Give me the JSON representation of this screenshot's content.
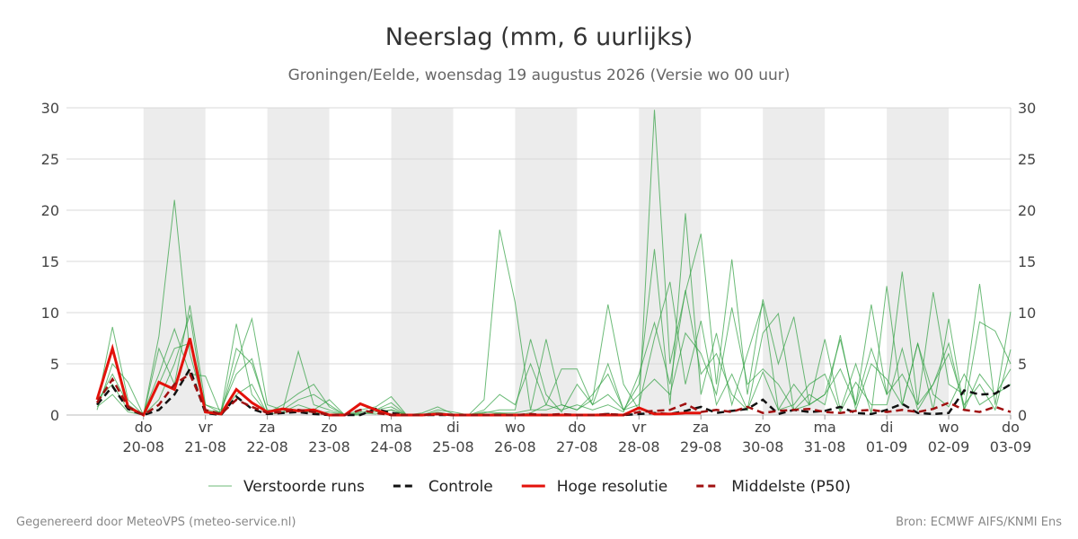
{
  "chart_data": {
    "type": "line",
    "title": "Neerslag (mm, 6 uurlijks)",
    "subtitle": "Groningen/Eelde, woensdag 19 augustus 2026 (Versie wo 00 uur)",
    "categories": [
      null,
      null,
      null,
      "do\n20-08",
      null,
      null,
      null,
      "vr\n21-08",
      null,
      null,
      null,
      "za\n22-08",
      null,
      null,
      null,
      "zo\n23-08",
      null,
      null,
      null,
      "ma\n24-08",
      null,
      null,
      null,
      "di\n25-08",
      null,
      null,
      null,
      "wo\n26-08",
      null,
      null,
      null,
      "do\n27-08",
      null,
      null,
      null,
      "vr\n28-08",
      null,
      null,
      null,
      "za\n29-08",
      null,
      null,
      null,
      "zo\n30-08",
      null,
      null,
      null,
      "ma\n31-08",
      null,
      null,
      null,
      "di\n01-09",
      null,
      null,
      null,
      "wo\n02-09",
      null,
      null,
      null,
      "do\n03-09"
    ],
    "ylim": [
      0,
      30
    ],
    "yticks": [
      0,
      5,
      10,
      15,
      20,
      25,
      30
    ],
    "grid": true,
    "series": [
      {
        "name": "Verstoorde runs",
        "color": "#2e9e3e",
        "runs": [
          [
            1,
            8.6,
            1.5,
            0,
            6.5,
            3,
            10.7,
            1,
            0.2,
            5,
            9.4,
            1,
            0.5,
            6.2,
            1,
            0.5,
            0,
            0.5,
            0.8,
            1.8,
            0,
            0,
            0.5,
            0.3,
            0,
            1.5,
            18.1,
            11,
            0.5,
            7.4,
            1,
            0.5,
            1.5,
            10.8,
            3,
            0.5,
            29.8,
            5,
            12,
            17.7,
            3,
            15.2,
            2,
            11.3,
            5,
            9.6,
            1,
            2,
            7.4,
            1,
            10.8,
            2,
            14,
            1,
            12,
            3,
            2,
            12.8,
            1,
            10.1
          ],
          [
            0.5,
            5,
            3.2,
            0,
            7.7,
            21,
            6,
            0.5,
            0.3,
            8.9,
            2,
            0.2,
            1,
            2.1,
            3,
            0.8,
            0,
            0.3,
            0.5,
            1.2,
            0,
            0.2,
            0.8,
            0.1,
            0,
            0.5,
            2,
            1,
            5,
            1,
            4.5,
            4.5,
            1,
            2,
            0.5,
            3,
            16.2,
            1,
            19.7,
            2,
            8,
            1,
            6,
            10.9,
            0.5,
            3,
            1,
            7.4,
            0.5,
            5,
            0.2,
            12.6,
            1,
            7,
            0.5,
            9.4,
            0.5,
            9.1,
            8.2,
            5
          ],
          [
            1.5,
            3,
            0.5,
            0.2,
            4,
            8.4,
            4,
            3.8,
            0.1,
            6.5,
            5,
            0.5,
            0.3,
            1,
            0.5,
            1.5,
            0,
            0.1,
            0.3,
            0.5,
            0,
            0,
            0.3,
            0,
            0,
            0.2,
            0.5,
            0.5,
            7.4,
            2,
            0.3,
            3,
            1,
            5,
            0.5,
            1,
            7.5,
            13,
            3,
            9.2,
            1,
            4,
            0.5,
            8,
            9.9,
            0.5,
            2,
            1,
            7.8,
            0.5,
            5,
            3.5,
            1,
            7,
            2,
            0.8,
            4,
            1,
            2,
            4.5
          ],
          [
            0.8,
            2,
            0.3,
            0,
            1.5,
            5,
            9.8,
            0.2,
            0,
            2,
            3,
            0.1,
            0.2,
            0.5,
            0.2,
            0.3,
            0,
            0.2,
            0.1,
            0.5,
            0,
            0,
            0.1,
            0,
            0,
            0,
            0.2,
            0,
            0.2,
            1,
            0.5,
            1,
            0.5,
            1,
            0.3,
            4,
            9,
            3,
            12.2,
            4,
            6,
            2,
            0.5,
            4.2,
            0.5,
            1,
            3,
            4,
            0.3,
            3.2,
            1,
            1,
            6.5,
            0.5,
            3,
            6,
            1,
            3,
            0.5,
            6.4
          ],
          [
            1.2,
            4,
            1,
            0,
            3,
            6.5,
            7,
            1,
            0.5,
            4,
            5.5,
            0.3,
            0.5,
            1.5,
            2,
            1,
            0,
            0,
            0.5,
            0.8,
            0,
            0,
            0,
            0,
            0,
            0.3,
            0.2,
            0.2,
            0.5,
            0.5,
            1,
            0.5,
            2,
            4,
            0.5,
            2,
            3.5,
            2,
            8,
            6,
            2,
            10.5,
            3,
            4.5,
            3,
            0.5,
            1,
            2,
            4.5,
            1,
            6.5,
            2,
            4,
            1,
            3,
            7,
            0.5,
            4,
            2,
            3
          ]
        ]
      },
      {
        "name": "Controle",
        "color": "#111111",
        "dash": true,
        "values": [
          1,
          2.8,
          0.6,
          0,
          0.5,
          2,
          4.5,
          0.2,
          0,
          1.8,
          0.6,
          0.1,
          0.2,
          0.3,
          0.1,
          0,
          0,
          0,
          0.6,
          0.2,
          0,
          0,
          0,
          0,
          0,
          0,
          0,
          0,
          0,
          0,
          0,
          0,
          0,
          0.1,
          0,
          0.1,
          0.2,
          0.1,
          0.4,
          0.8,
          0.2,
          0.4,
          0.6,
          1.5,
          0.1,
          0.5,
          0.3,
          0.4,
          0.8,
          0.2,
          0.1,
          0.5,
          1.1,
          0.2,
          0.1,
          0.2,
          2.4,
          2,
          2.1,
          3
        ]
      },
      {
        "name": "Hoge resolutie",
        "color": "#e3120b",
        "values": [
          1.5,
          6.5,
          0.8,
          0,
          3.2,
          2.5,
          7.5,
          0.3,
          0.1,
          2.5,
          1.2,
          0.3,
          0.6,
          0.4,
          0.5,
          0,
          0,
          1.1,
          0.5,
          0,
          0,
          0,
          0.1,
          0,
          0,
          0,
          0,
          0,
          0,
          0,
          0,
          0,
          0,
          0,
          0,
          0.7,
          0.1,
          0.1,
          0.2,
          0.2,
          null,
          null,
          null,
          null,
          null,
          null,
          null,
          null,
          null,
          null,
          null,
          null,
          null,
          null,
          null,
          null,
          null,
          null,
          null,
          null
        ]
      },
      {
        "name": "Middelste (P50)",
        "color": "#a01010",
        "dash": true,
        "values": [
          1.2,
          3.5,
          0.8,
          0,
          1,
          3,
          4,
          0.5,
          0.1,
          1.5,
          0.8,
          0.2,
          0.3,
          0.5,
          0.3,
          0,
          0,
          0.5,
          0.2,
          0,
          0,
          0,
          0.1,
          0,
          0,
          0,
          0,
          0,
          0.1,
          0,
          0.1,
          0,
          0,
          0.1,
          0,
          0.3,
          0.4,
          0.5,
          1.1,
          0.3,
          0.5,
          0.3,
          0.8,
          0.2,
          0.4,
          0.5,
          0.6,
          0.3,
          0.2,
          0.4,
          0.5,
          0.3,
          0.5,
          0.3,
          0.6,
          1.2,
          0.5,
          0.3,
          0.8,
          0.3
        ]
      }
    ],
    "footer_left": "Gegenereerd door MeteoVPS (meteo-service.nl)",
    "footer_right": "Bron: ECMWF AIFS/KNMI Ens"
  }
}
